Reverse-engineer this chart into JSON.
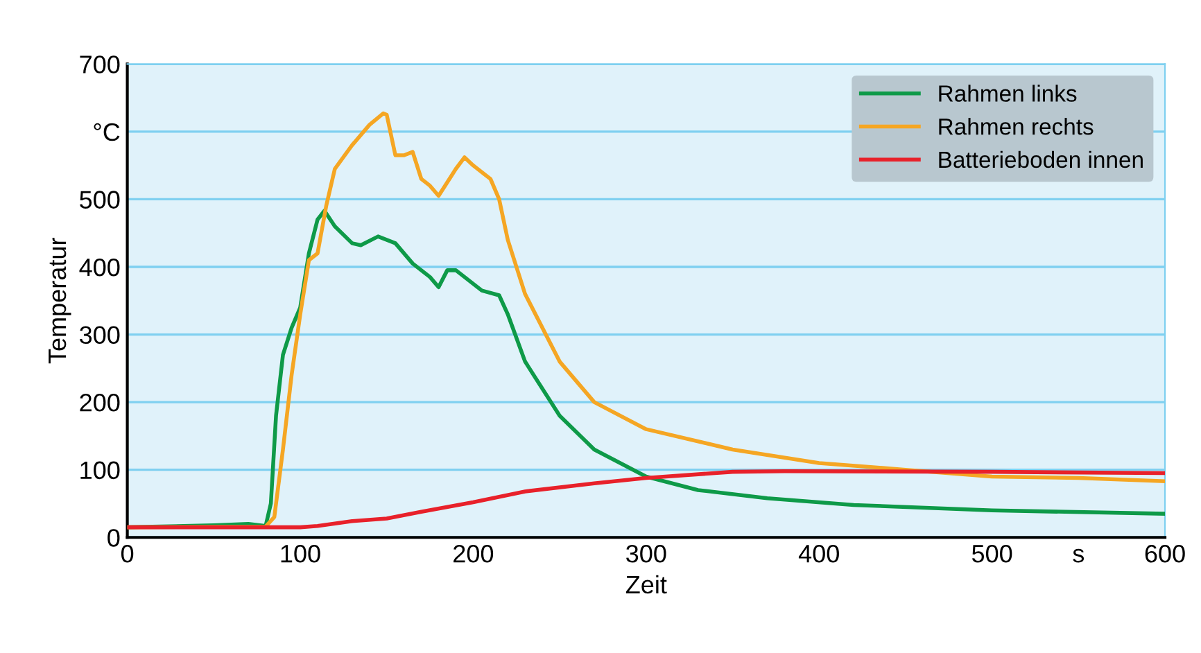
{
  "chart_data": {
    "type": "line",
    "xlabel": "Zeit",
    "ylabel": "Temperatur",
    "xlim": [
      0,
      600
    ],
    "ylim": [
      0,
      700
    ],
    "xticks": [
      0,
      100,
      200,
      300,
      400,
      500,
      {
        "value": 550,
        "label": "s"
      },
      600
    ],
    "yticks": [
      0,
      100,
      200,
      300,
      400,
      500,
      {
        "value": 600,
        "label": "°C"
      },
      700
    ],
    "grid": "y",
    "legend": "top right",
    "line_style": "solid",
    "marker": "none",
    "series": [
      {
        "name": "Rahmen links",
        "color": "#0e9a48",
        "x": [
          0,
          50,
          70,
          80,
          83,
          86,
          90,
          95,
          100,
          105,
          110,
          114,
          120,
          130,
          135,
          145,
          155,
          165,
          175,
          180,
          185,
          190,
          200,
          205,
          215,
          220,
          230,
          250,
          270,
          300,
          330,
          370,
          420,
          500,
          600
        ],
        "values": [
          15,
          18,
          20,
          17,
          50,
          180,
          270,
          310,
          340,
          420,
          470,
          483,
          460,
          435,
          432,
          445,
          435,
          405,
          385,
          370,
          395,
          395,
          375,
          365,
          358,
          330,
          260,
          180,
          130,
          90,
          70,
          58,
          48,
          40,
          35
        ]
      },
      {
        "name": "Rahmen rechts",
        "color": "#f5a623",
        "x": [
          0,
          80,
          85,
          90,
          95,
          100,
          105,
          110,
          115,
          120,
          130,
          140,
          148,
          150,
          155,
          160,
          165,
          170,
          175,
          180,
          190,
          195,
          200,
          210,
          215,
          220,
          230,
          250,
          270,
          300,
          350,
          400,
          450,
          500,
          550,
          600
        ],
        "values": [
          15,
          16,
          30,
          130,
          240,
          330,
          410,
          420,
          490,
          545,
          580,
          610,
          627,
          625,
          565,
          565,
          570,
          530,
          520,
          505,
          545,
          562,
          550,
          530,
          500,
          440,
          360,
          260,
          200,
          160,
          130,
          110,
          100,
          90,
          88,
          83
        ]
      },
      {
        "name": "Batterieboden innen",
        "color": "#e8212a",
        "x": [
          0,
          100,
          110,
          130,
          150,
          170,
          200,
          230,
          270,
          300,
          350,
          380,
          500,
          600
        ],
        "values": [
          15,
          15,
          17,
          24,
          28,
          38,
          52,
          68,
          80,
          88,
          97,
          98,
          97,
          95
        ]
      }
    ]
  }
}
